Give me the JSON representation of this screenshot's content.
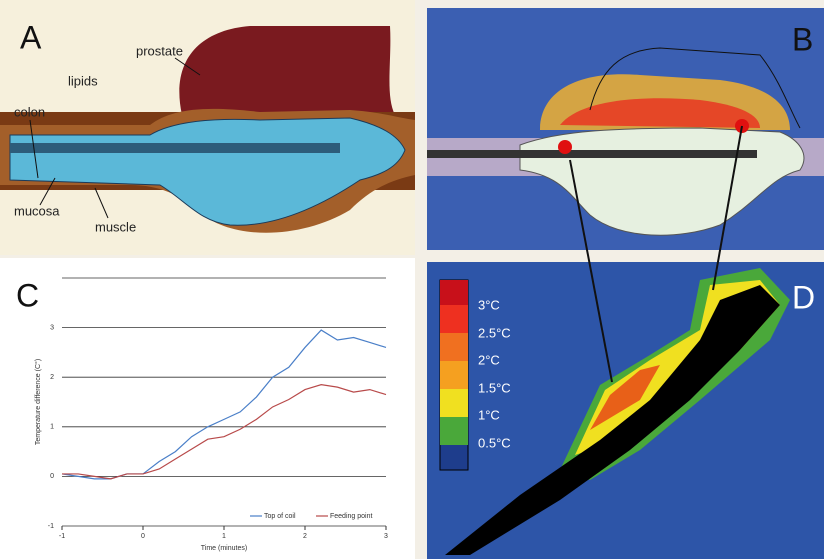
{
  "panel_a": {
    "letter": "A",
    "labels": [
      "prostate",
      "lipids",
      "colon",
      "mucosa",
      "muscle"
    ]
  },
  "panel_b": {
    "letter": "B"
  },
  "chart_data": {
    "type": "line",
    "panel_letter": "C",
    "x_label": "Time (minutes)",
    "y_label": "Temperature difference (C°)",
    "x": [
      -1,
      -0.8,
      -0.6,
      -0.4,
      -0.2,
      0,
      0.2,
      0.4,
      0.6,
      0.8,
      1,
      1.2,
      1.4,
      1.6,
      1.8,
      2,
      2.2,
      2.4,
      2.6,
      2.8,
      3
    ],
    "series": [
      {
        "name": "Top of coil",
        "color": "#4a7fc8",
        "values": [
          0.05,
          0,
          -0.05,
          -0.05,
          0.05,
          0.05,
          0.3,
          0.5,
          0.8,
          1.0,
          1.15,
          1.3,
          1.6,
          2.0,
          2.2,
          2.6,
          2.95,
          2.75,
          2.8,
          2.7,
          2.6
        ]
      },
      {
        "name": "Feeding point",
        "color": "#b84a4a",
        "values": [
          0.05,
          0.05,
          0,
          -0.05,
          0.05,
          0.05,
          0.15,
          0.35,
          0.55,
          0.75,
          0.8,
          0.95,
          1.15,
          1.4,
          1.55,
          1.75,
          1.85,
          1.8,
          1.7,
          1.75,
          1.65
        ]
      }
    ],
    "xlim": [
      -1,
      3
    ],
    "xticks": [
      -1,
      0,
      1,
      2,
      3
    ],
    "ylim": [
      -1,
      4
    ],
    "yticks": [
      -1,
      0,
      1,
      2,
      3
    ],
    "grid": true
  },
  "panel_d": {
    "letter": "D",
    "scale_labels": [
      "3°C",
      "2.5°C",
      "2°C",
      "1.5°C",
      "1°C",
      "0.5°C"
    ]
  }
}
